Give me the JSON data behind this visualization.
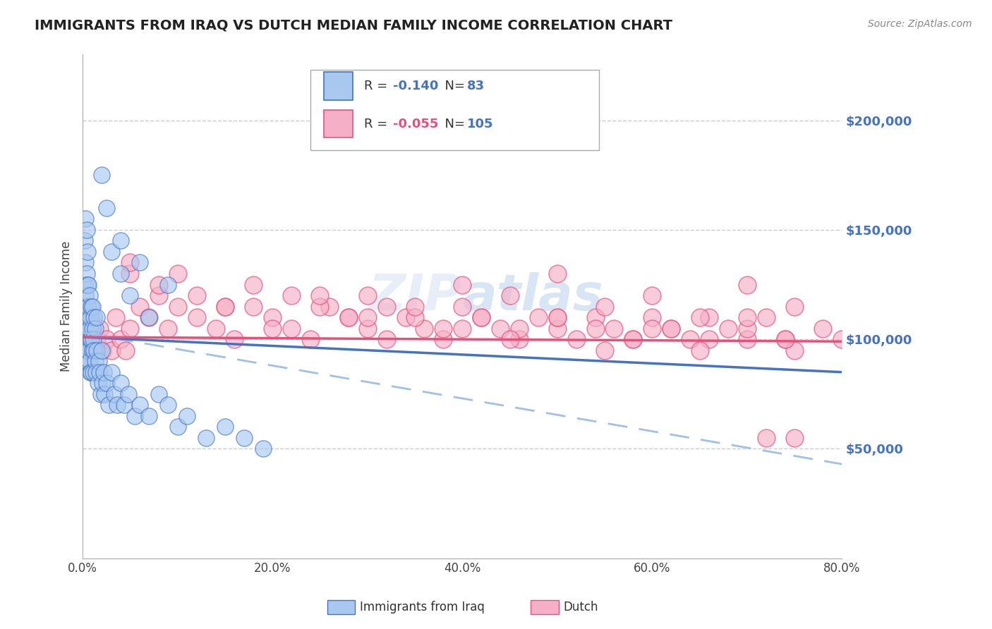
{
  "title": "IMMIGRANTS FROM IRAQ VS DUTCH MEDIAN FAMILY INCOME CORRELATION CHART",
  "source_text": "Source: ZipAtlas.com",
  "ylabel": "Median Family Income",
  "xlim": [
    0.0,
    0.8
  ],
  "ylim": [
    0,
    230000
  ],
  "xtick_labels": [
    "0.0%",
    "20.0%",
    "40.0%",
    "60.0%",
    "80.0%"
  ],
  "xtick_vals": [
    0.0,
    0.2,
    0.4,
    0.6,
    0.8
  ],
  "ytick_labels": [
    "$50,000",
    "$100,000",
    "$150,000",
    "$200,000"
  ],
  "ytick_vals": [
    50000,
    100000,
    150000,
    200000
  ],
  "r_iraq": -0.14,
  "n_iraq": 83,
  "r_dutch": -0.055,
  "n_dutch": 105,
  "color_iraq": "#a8c8f0",
  "color_dutch": "#f5b0c8",
  "color_iraq_line": "#4472c4",
  "color_dutch_line": "#e8507a",
  "color_dashed_line": "#a0c0e8",
  "watermark": "ZIPAtlas",
  "legend_label_iraq": "Immigrants from Iraq",
  "legend_label_dutch": "Dutch",
  "iraq_line_x0": 0.0,
  "iraq_line_y0": 101000,
  "iraq_line_x1": 0.8,
  "iraq_line_y1": 85000,
  "dutch_line_x0": 0.0,
  "dutch_line_y0": 101000,
  "dutch_line_x1": 0.8,
  "dutch_line_y1": 99000,
  "dash_line_x0": 0.0,
  "dash_line_y0": 103000,
  "dash_line_x1": 0.8,
  "dash_line_y1": 43000,
  "iraq_x": [
    0.001,
    0.001,
    0.001,
    0.002,
    0.002,
    0.002,
    0.002,
    0.002,
    0.003,
    0.003,
    0.003,
    0.003,
    0.004,
    0.004,
    0.004,
    0.004,
    0.005,
    0.005,
    0.005,
    0.005,
    0.005,
    0.006,
    0.006,
    0.006,
    0.006,
    0.006,
    0.007,
    0.007,
    0.007,
    0.008,
    0.008,
    0.008,
    0.009,
    0.009,
    0.009,
    0.01,
    0.01,
    0.01,
    0.011,
    0.011,
    0.012,
    0.012,
    0.013,
    0.013,
    0.014,
    0.015,
    0.015,
    0.016,
    0.017,
    0.018,
    0.019,
    0.02,
    0.021,
    0.022,
    0.023,
    0.025,
    0.027,
    0.03,
    0.033,
    0.036,
    0.04,
    0.044,
    0.048,
    0.055,
    0.06,
    0.07,
    0.08,
    0.09,
    0.1,
    0.11,
    0.13,
    0.15,
    0.17,
    0.19,
    0.02,
    0.025,
    0.03,
    0.04,
    0.05,
    0.07,
    0.04,
    0.06,
    0.09
  ],
  "iraq_y": [
    105000,
    115000,
    95000,
    125000,
    110000,
    100000,
    90000,
    145000,
    120000,
    135000,
    155000,
    105000,
    130000,
    110000,
    150000,
    95000,
    115000,
    105000,
    125000,
    140000,
    90000,
    110000,
    125000,
    100000,
    115000,
    95000,
    105000,
    120000,
    90000,
    110000,
    100000,
    85000,
    115000,
    100000,
    85000,
    105000,
    95000,
    115000,
    100000,
    85000,
    95000,
    110000,
    90000,
    105000,
    85000,
    95000,
    110000,
    80000,
    90000,
    85000,
    75000,
    95000,
    80000,
    85000,
    75000,
    80000,
    70000,
    85000,
    75000,
    70000,
    80000,
    70000,
    75000,
    65000,
    70000,
    65000,
    75000,
    70000,
    60000,
    65000,
    55000,
    60000,
    55000,
    50000,
    175000,
    160000,
    140000,
    130000,
    120000,
    110000,
    145000,
    135000,
    125000
  ],
  "dutch_x": [
    0.001,
    0.002,
    0.003,
    0.004,
    0.005,
    0.006,
    0.007,
    0.008,
    0.009,
    0.01,
    0.012,
    0.015,
    0.018,
    0.021,
    0.025,
    0.03,
    0.035,
    0.04,
    0.045,
    0.05,
    0.06,
    0.07,
    0.08,
    0.09,
    0.1,
    0.12,
    0.14,
    0.16,
    0.18,
    0.2,
    0.22,
    0.24,
    0.26,
    0.28,
    0.3,
    0.32,
    0.34,
    0.36,
    0.38,
    0.4,
    0.42,
    0.44,
    0.46,
    0.48,
    0.5,
    0.52,
    0.54,
    0.56,
    0.58,
    0.6,
    0.62,
    0.64,
    0.66,
    0.68,
    0.7,
    0.72,
    0.74,
    0.75,
    0.78,
    0.8,
    0.05,
    0.08,
    0.12,
    0.15,
    0.18,
    0.22,
    0.25,
    0.28,
    0.32,
    0.35,
    0.38,
    0.42,
    0.46,
    0.5,
    0.54,
    0.58,
    0.62,
    0.66,
    0.7,
    0.74,
    0.3,
    0.4,
    0.5,
    0.6,
    0.7,
    0.15,
    0.25,
    0.35,
    0.45,
    0.55,
    0.65,
    0.75,
    0.2,
    0.3,
    0.4,
    0.5,
    0.6,
    0.7,
    0.75,
    0.72,
    0.45,
    0.55,
    0.65,
    0.05,
    0.1
  ],
  "dutch_y": [
    105000,
    100000,
    110000,
    95000,
    105000,
    100000,
    95000,
    110000,
    100000,
    105000,
    95000,
    100000,
    105000,
    95000,
    100000,
    95000,
    110000,
    100000,
    95000,
    105000,
    115000,
    110000,
    120000,
    105000,
    115000,
    110000,
    105000,
    100000,
    115000,
    110000,
    105000,
    100000,
    115000,
    110000,
    105000,
    100000,
    110000,
    105000,
    100000,
    115000,
    110000,
    105000,
    100000,
    110000,
    105000,
    100000,
    110000,
    105000,
    100000,
    110000,
    105000,
    100000,
    110000,
    105000,
    100000,
    110000,
    100000,
    95000,
    105000,
    100000,
    130000,
    125000,
    120000,
    115000,
    125000,
    120000,
    115000,
    110000,
    115000,
    110000,
    105000,
    110000,
    105000,
    110000,
    105000,
    100000,
    105000,
    100000,
    105000,
    100000,
    120000,
    125000,
    130000,
    120000,
    125000,
    115000,
    120000,
    115000,
    120000,
    115000,
    110000,
    115000,
    105000,
    110000,
    105000,
    110000,
    105000,
    110000,
    55000,
    55000,
    100000,
    95000,
    95000,
    135000,
    130000
  ]
}
